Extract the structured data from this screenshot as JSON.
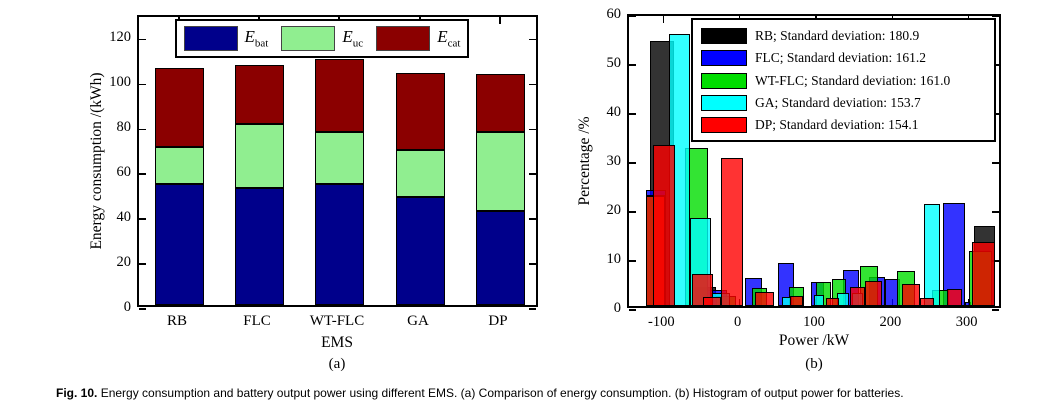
{
  "caption": {
    "label": "Fig. 10.",
    "text": "Energy consumption and battery output power using different EMS. (a) Comparison of energy consumption. (b) Histogram of output power for batteries."
  },
  "chart_data": [
    {
      "id": "a",
      "type": "bar",
      "stacked": true,
      "xlabel": "EMS",
      "ylabel": "Energy consumption /(kWh)",
      "sublabel": "(a)",
      "categories": [
        "RB",
        "FLC",
        "WT-FLC",
        "GA",
        "DP"
      ],
      "yticks": [
        0,
        20,
        40,
        60,
        80,
        100,
        120
      ],
      "ylim": [
        0,
        130
      ],
      "grid": false,
      "legend_position": "top-inside",
      "series": [
        {
          "name": "E_bat",
          "label_main": "E",
          "label_sub": "bat",
          "color": "#00008B",
          "values": [
            54,
            52,
            54,
            48,
            42
          ]
        },
        {
          "name": "E_uc",
          "label_main": "E",
          "label_sub": "uc",
          "color": "#90EE90",
          "values": [
            16.5,
            28.5,
            23,
            21,
            35
          ]
        },
        {
          "name": "E_cat",
          "label_main": "E",
          "label_sub": "cat",
          "color": "#8B0000",
          "values": [
            35,
            26.5,
            32.5,
            34.5,
            26
          ]
        }
      ],
      "totals": [
        105.5,
        107,
        109.5,
        103.5,
        103
      ]
    },
    {
      "id": "b",
      "type": "histogram",
      "xlabel": "Power /kW",
      "ylabel": "Percentage /%",
      "sublabel": "(b)",
      "xticks": [
        -100,
        0,
        100,
        200,
        300
      ],
      "yticks": [
        0,
        10,
        20,
        30,
        40,
        50,
        60
      ],
      "xlim": [
        -145,
        345
      ],
      "ylim": [
        0,
        60
      ],
      "grid": false,
      "legend_position": "top-right-inside",
      "legend": [
        {
          "name": "RB",
          "std": 180.9,
          "label": "RB; Standard deviation: 180.9",
          "color": "#000000"
        },
        {
          "name": "FLC",
          "std": 161.2,
          "label": "FLC; Standard deviation: 161.2",
          "color": "#0000FF"
        },
        {
          "name": "WT-FLC",
          "std": 161.0,
          "label": "WT-FLC; Standard deviation: 161.0",
          "color": "#00DD00"
        },
        {
          "name": "GA",
          "std": 153.7,
          "label": "GA; Standard deviation: 153.7",
          "color": "#00FFFF"
        },
        {
          "name": "DP",
          "std": 154.1,
          "label": "DP; Standard deviation: 154.1",
          "color": "#FF0000"
        }
      ],
      "bars": [
        {
          "series": "RB",
          "x0": -117,
          "x1": -86,
          "y": 54
        },
        {
          "series": "RB",
          "x0": -58,
          "x1": -31,
          "y": 3.8
        },
        {
          "series": "RB",
          "x0": 307,
          "x1": 334,
          "y": 16.3
        },
        {
          "series": "FLC",
          "x0": -123,
          "x1": -97,
          "y": 23.6
        },
        {
          "series": "FLC",
          "x0": -43,
          "x1": -17,
          "y": 3.2
        },
        {
          "series": "FLC",
          "x0": 7,
          "x1": 29,
          "y": 5.8
        },
        {
          "series": "FLC",
          "x0": 50,
          "x1": 71,
          "y": 8.8
        },
        {
          "series": "FLC",
          "x0": 93,
          "x1": 110,
          "y": 5.0
        },
        {
          "series": "FLC",
          "x0": 136,
          "x1": 157,
          "y": 7.3
        },
        {
          "series": "FLC",
          "x0": 170,
          "x1": 190,
          "y": 6.0
        },
        {
          "series": "FLC",
          "x0": 190,
          "x1": 210,
          "y": 5.6
        },
        {
          "series": "FLC",
          "x0": 266,
          "x1": 295,
          "y": 21.1
        },
        {
          "series": "FLC",
          "x0": 295,
          "x1": 303,
          "y": 0.8
        },
        {
          "series": "WT-FLC",
          "x0": -123,
          "x1": -97,
          "y": 22.6
        },
        {
          "series": "WT-FLC",
          "x0": -71,
          "x1": -41,
          "y": 32.2
        },
        {
          "series": "WT-FLC",
          "x0": -31,
          "x1": -5,
          "y": 2.1
        },
        {
          "series": "WT-FLC",
          "x0": 16,
          "x1": 36,
          "y": 3.7
        },
        {
          "series": "WT-FLC",
          "x0": 64,
          "x1": 84,
          "y": 3.9
        },
        {
          "series": "WT-FLC",
          "x0": 100,
          "x1": 120,
          "y": 4.9
        },
        {
          "series": "WT-FLC",
          "x0": 121,
          "x1": 139,
          "y": 5.6
        },
        {
          "series": "WT-FLC",
          "x0": 158,
          "x1": 181,
          "y": 8.1
        },
        {
          "series": "WT-FLC",
          "x0": 206,
          "x1": 230,
          "y": 7.2
        },
        {
          "series": "WT-FLC",
          "x0": 252,
          "x1": 274,
          "y": 3.3
        },
        {
          "series": "WT-FLC",
          "x0": 300,
          "x1": 330,
          "y": 11.3
        },
        {
          "series": "GA",
          "x0": -93,
          "x1": -65,
          "y": 55.5
        },
        {
          "series": "GA",
          "x0": -65,
          "x1": -37,
          "y": 17.9
        },
        {
          "series": "GA",
          "x0": -38,
          "x1": -13,
          "y": 2.6
        },
        {
          "series": "GA",
          "x0": 55,
          "x1": 68,
          "y": 1.9
        },
        {
          "series": "GA",
          "x0": 97,
          "x1": 111,
          "y": 2.3
        },
        {
          "series": "GA",
          "x0": 128,
          "x1": 143,
          "y": 2.6
        },
        {
          "series": "GA",
          "x0": 147,
          "x1": 161,
          "y": 2.7
        },
        {
          "series": "GA",
          "x0": 242,
          "x1": 262,
          "y": 20.8
        },
        {
          "series": "DP",
          "x0": -123,
          "x1": -98,
          "y": 22.4
        },
        {
          "series": "DP",
          "x0": -114,
          "x1": -85,
          "y": 32.8
        },
        {
          "series": "DP",
          "x0": -63,
          "x1": -35,
          "y": 6.6
        },
        {
          "series": "DP",
          "x0": -48,
          "x1": -24,
          "y": 1.9
        },
        {
          "series": "DP",
          "x0": -24,
          "x1": 4,
          "y": 30.3
        },
        {
          "series": "DP",
          "x0": 20,
          "x1": 45,
          "y": 2.9
        },
        {
          "series": "DP",
          "x0": 66,
          "x1": 83,
          "y": 2.0
        },
        {
          "series": "DP",
          "x0": 113,
          "x1": 130,
          "y": 1.6
        },
        {
          "series": "DP",
          "x0": 144,
          "x1": 164,
          "y": 3.8
        },
        {
          "series": "DP",
          "x0": 164,
          "x1": 186,
          "y": 5.2
        },
        {
          "series": "DP",
          "x0": 213,
          "x1": 236,
          "y": 4.5
        },
        {
          "series": "DP",
          "x0": 236,
          "x1": 254,
          "y": 1.6
        },
        {
          "series": "DP",
          "x0": 272,
          "x1": 291,
          "y": 3.4
        },
        {
          "series": "DP",
          "x0": 304,
          "x1": 334,
          "y": 13.0
        }
      ],
      "bar_alpha": 0.8
    }
  ]
}
